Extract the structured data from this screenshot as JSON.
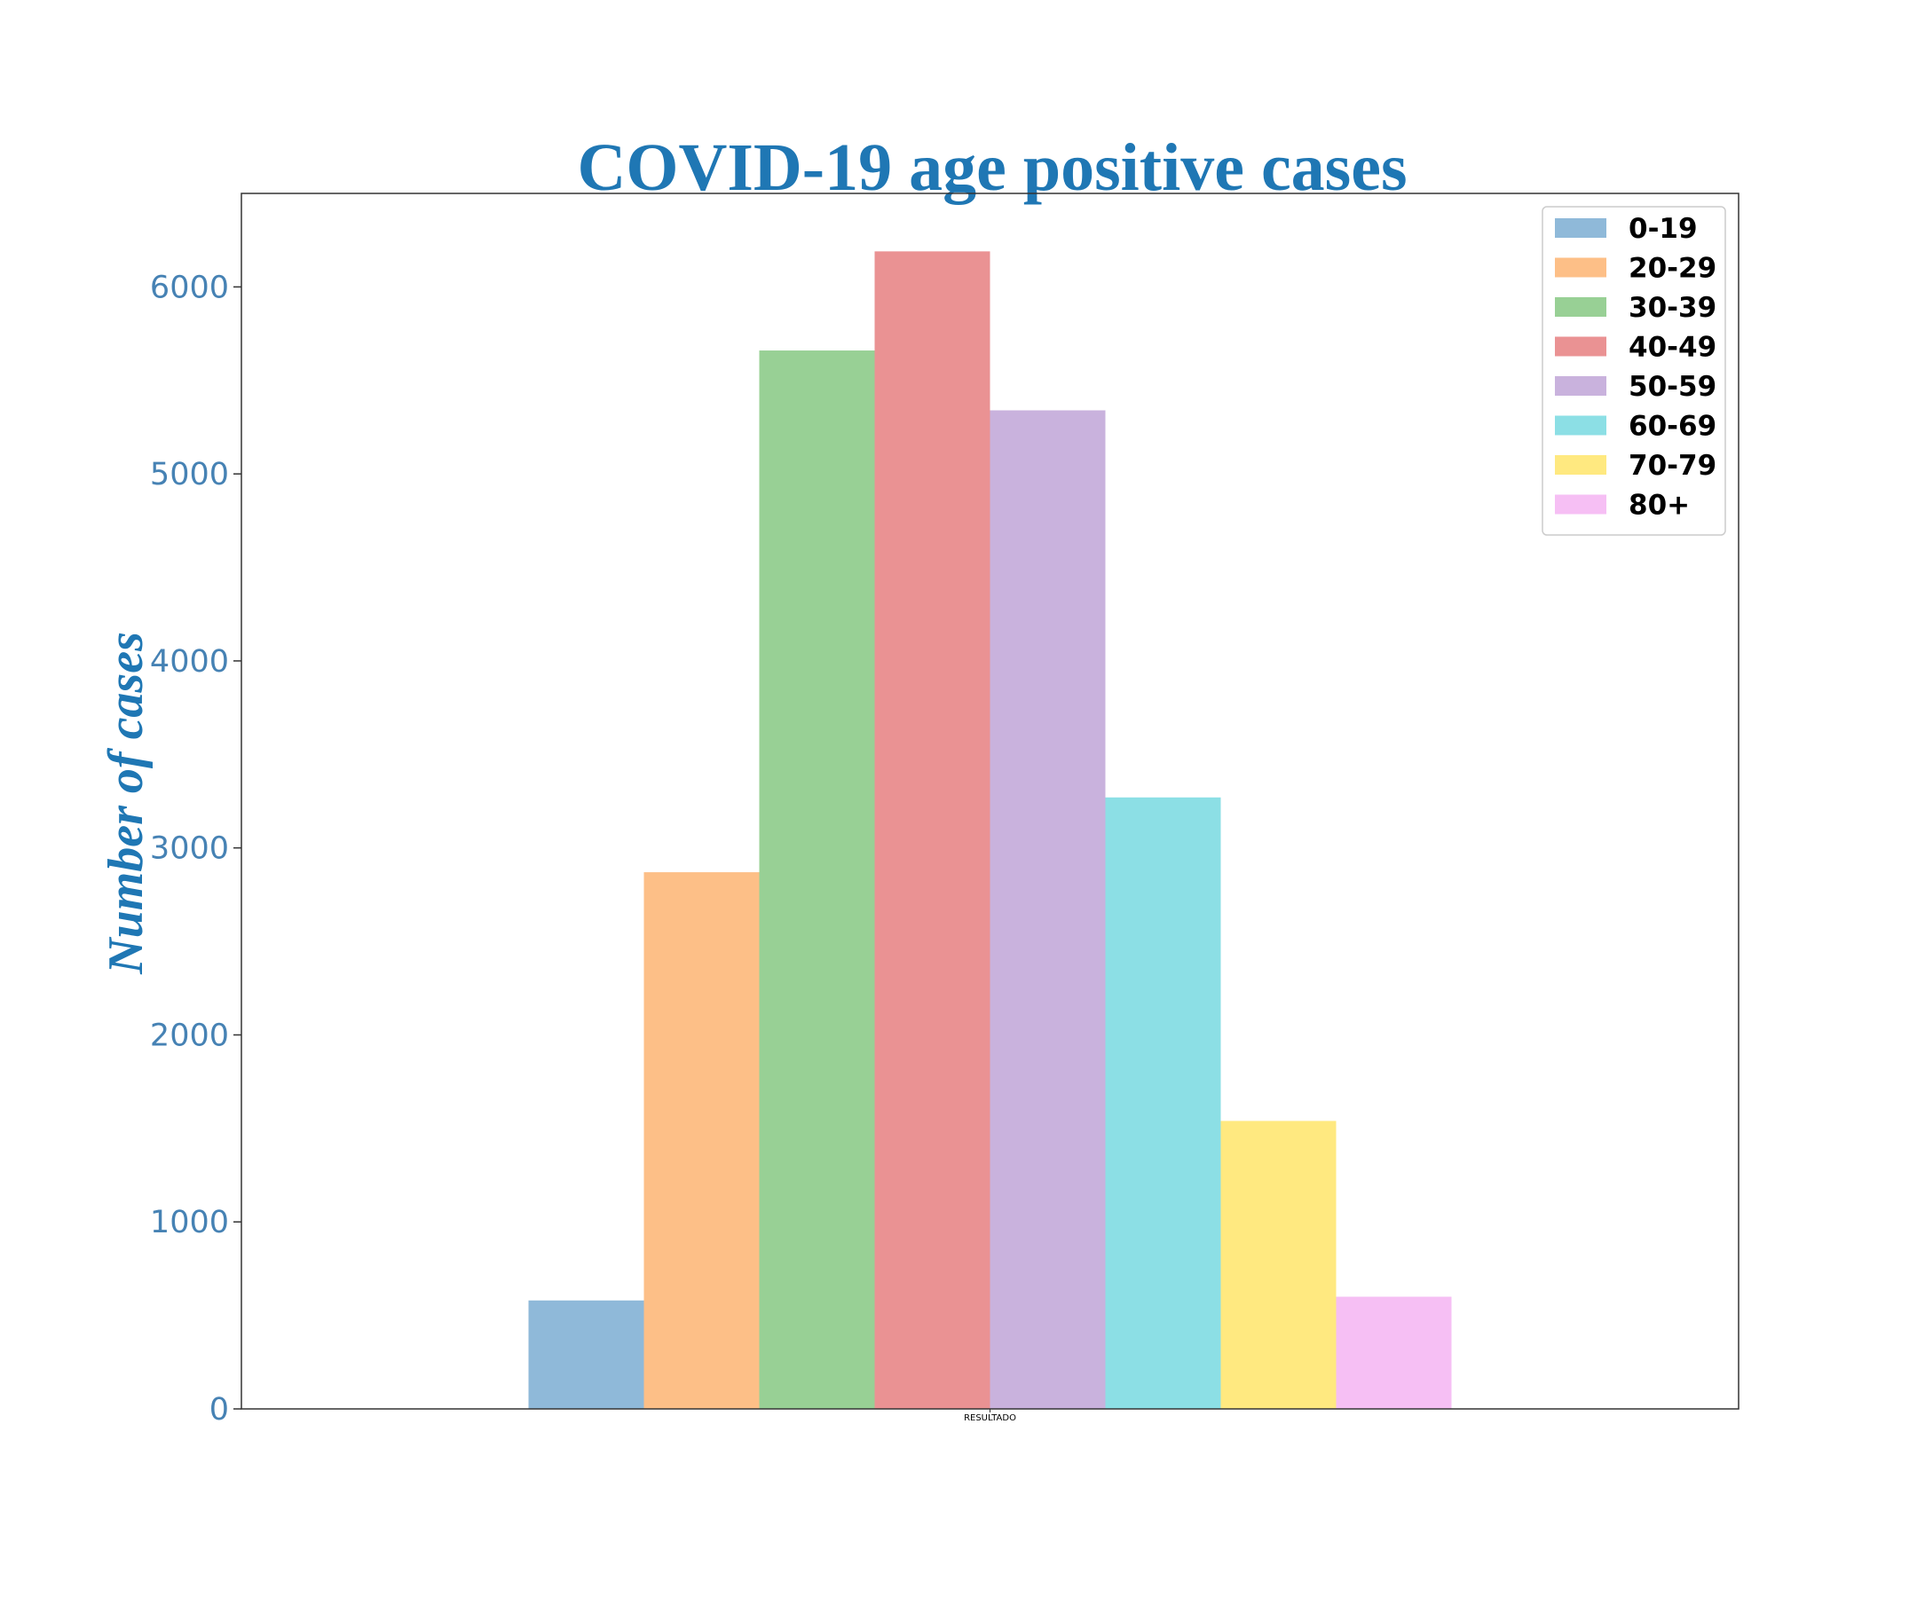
{
  "chart_data": {
    "type": "bar",
    "title": "COVID-19 age positive cases",
    "ylabel": "Number of cases",
    "xlabel": "",
    "categories": [
      "RESULTADO"
    ],
    "ylim": [
      0,
      6500
    ],
    "yticks": [
      0,
      1000,
      2000,
      3000,
      4000,
      5000,
      6000
    ],
    "grid": false,
    "legend_position": "top-right",
    "series": [
      {
        "name": "0-19",
        "values": [
          580
        ],
        "color": "#8fb9d9"
      },
      {
        "name": "20-29",
        "values": [
          2870
        ],
        "color": "#fdbf87"
      },
      {
        "name": "30-39",
        "values": [
          5660
        ],
        "color": "#98d095"
      },
      {
        "name": "40-49",
        "values": [
          6190
        ],
        "color": "#ea9293"
      },
      {
        "name": "50-59",
        "values": [
          5340
        ],
        "color": "#c9b2dd"
      },
      {
        "name": "60-69",
        "values": [
          3270
        ],
        "color": "#8cdfe5"
      },
      {
        "name": "70-79",
        "values": [
          1540
        ],
        "color": "#ffe980"
      },
      {
        "name": "80+",
        "values": [
          600
        ],
        "color": "#f6bff4"
      }
    ],
    "colors": {
      "title": "#1f77b4",
      "ylabel": "#1f77b4",
      "tick_labels": "#4682b4",
      "axes": "#333333"
    }
  }
}
